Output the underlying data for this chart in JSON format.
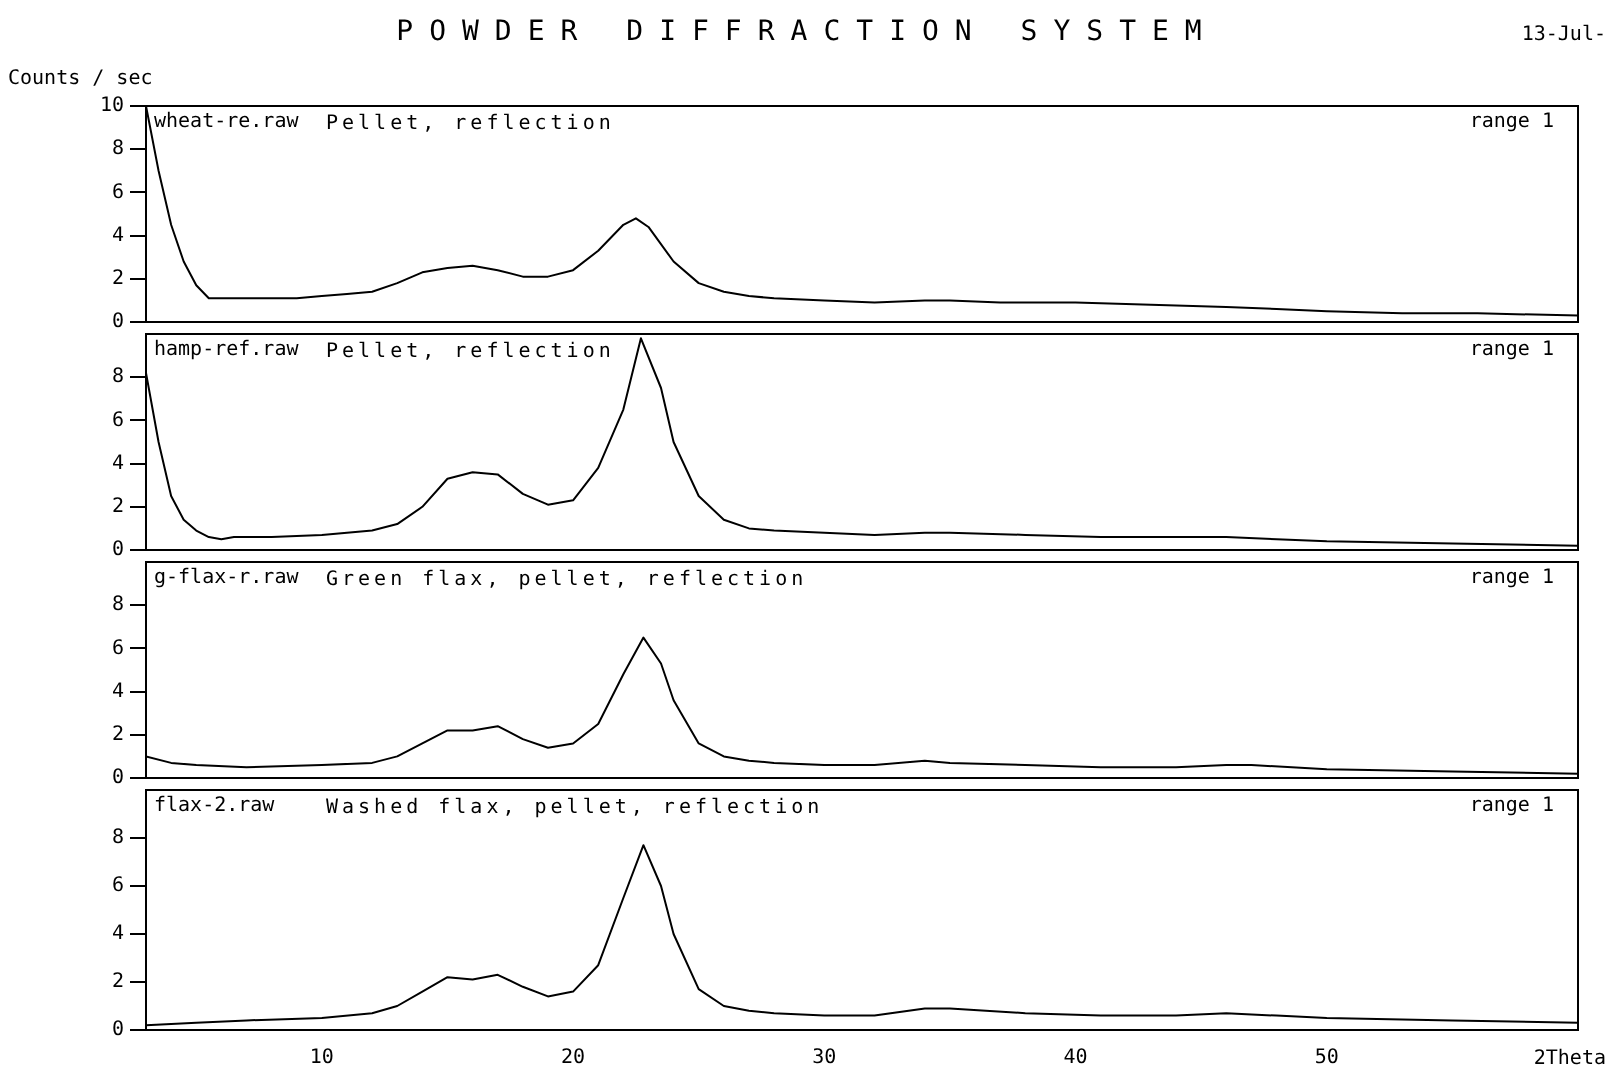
{
  "chart_data": [
    {
      "type": "line",
      "title": "POWDER DIFFRACTION SYSTEM",
      "ylabel": "Counts / sec",
      "annotations": [
        "wheat-re.raw",
        "Pellet, reflection",
        "range 1",
        "13-Jul-"
      ],
      "xlim": [
        3,
        60
      ],
      "xticks": [
        10,
        20,
        30,
        40,
        50
      ],
      "ylim": [
        0,
        10
      ],
      "yticks": [
        0,
        2,
        4,
        6,
        8,
        10
      ],
      "tick_labels": "y",
      "color": "#000000",
      "x": [
        3,
        3.5,
        4,
        4.5,
        5,
        5.5,
        6,
        7,
        8,
        9,
        10,
        11,
        12,
        13,
        14,
        15,
        16,
        17,
        18,
        19,
        20,
        21,
        22,
        22.5,
        23,
        24,
        25,
        26,
        27,
        28,
        30,
        32,
        34,
        35,
        37,
        40,
        43,
        46,
        48,
        50,
        53,
        56,
        60
      ],
      "values": [
        10,
        7,
        4.5,
        2.8,
        1.7,
        1.1,
        1.1,
        1.1,
        1.1,
        1.1,
        1.2,
        1.3,
        1.4,
        1.8,
        2.3,
        2.5,
        2.6,
        2.4,
        2.1,
        2.1,
        2.4,
        3.3,
        4.5,
        4.8,
        4.4,
        2.8,
        1.8,
        1.4,
        1.2,
        1.1,
        1.0,
        0.9,
        1.0,
        1.0,
        0.9,
        0.9,
        0.8,
        0.7,
        0.6,
        0.5,
        0.4,
        0.4,
        0.3
      ]
    },
    {
      "type": "line",
      "annotations": [
        "hamp-ref.raw",
        "Pellet, reflection",
        "range 1"
      ],
      "xlim": [
        3,
        60
      ],
      "xticks": [
        10,
        20,
        30,
        40,
        50
      ],
      "ylim": [
        0,
        10
      ],
      "yticks": [
        0,
        2,
        4,
        6,
        8
      ],
      "tick_labels": "y",
      "color": "#000000",
      "x": [
        3,
        3.5,
        4,
        4.5,
        5,
        5.5,
        6,
        6.5,
        8,
        10,
        12,
        13,
        14,
        15,
        16,
        17,
        18,
        19,
        20,
        21,
        22,
        22.7,
        23.5,
        24,
        25,
        26,
        27,
        28,
        30,
        32,
        34,
        35,
        38,
        41,
        44,
        46,
        48,
        50,
        55,
        60
      ],
      "values": [
        8.2,
        5,
        2.5,
        1.4,
        0.9,
        0.6,
        0.5,
        0.6,
        0.6,
        0.7,
        0.9,
        1.2,
        2.0,
        3.3,
        3.6,
        3.5,
        2.6,
        2.1,
        2.3,
        3.8,
        6.5,
        9.8,
        7.5,
        5,
        2.5,
        1.4,
        1.0,
        0.9,
        0.8,
        0.7,
        0.8,
        0.8,
        0.7,
        0.6,
        0.6,
        0.6,
        0.5,
        0.4,
        0.3,
        0.2
      ]
    },
    {
      "type": "line",
      "annotations": [
        "g-flax-r.raw",
        "Green flax, pellet, reflection",
        "range 1"
      ],
      "xlim": [
        3,
        60
      ],
      "xticks": [
        10,
        20,
        30,
        40,
        50
      ],
      "ylim": [
        0,
        10
      ],
      "yticks": [
        0,
        2,
        4,
        6,
        8
      ],
      "tick_labels": "y",
      "color": "#000000",
      "x": [
        3,
        4,
        5,
        7,
        10,
        12,
        13,
        14,
        15,
        16,
        17,
        18,
        19,
        20,
        21,
        22,
        22.8,
        23.5,
        24,
        25,
        26,
        27,
        28,
        30,
        32,
        34,
        35,
        38,
        41,
        44,
        46,
        47,
        50,
        55,
        60
      ],
      "values": [
        1.0,
        0.7,
        0.6,
        0.5,
        0.6,
        0.7,
        1.0,
        1.6,
        2.2,
        2.2,
        2.4,
        1.8,
        1.4,
        1.6,
        2.5,
        4.8,
        6.5,
        5.3,
        3.6,
        1.6,
        1.0,
        0.8,
        0.7,
        0.6,
        0.6,
        0.8,
        0.7,
        0.6,
        0.5,
        0.5,
        0.6,
        0.6,
        0.4,
        0.3,
        0.2
      ]
    },
    {
      "type": "line",
      "xlabel": "2Theta",
      "annotations": [
        "flax-2.raw",
        "Washed flax, pellet, reflection",
        "range 1"
      ],
      "xlim": [
        3,
        60
      ],
      "xticks": [
        10,
        20,
        30,
        40,
        50
      ],
      "ylim": [
        0,
        10
      ],
      "yticks": [
        0,
        2,
        4,
        6,
        8
      ],
      "color": "#000000",
      "x": [
        3,
        5,
        7,
        10,
        12,
        13,
        14,
        15,
        16,
        17,
        18,
        19,
        20,
        21,
        22,
        22.8,
        23.5,
        24,
        25,
        26,
        27,
        28,
        30,
        32,
        34,
        35,
        38,
        41,
        44,
        46,
        48,
        50,
        55,
        60
      ],
      "values": [
        0.2,
        0.3,
        0.4,
        0.5,
        0.7,
        1.0,
        1.6,
        2.2,
        2.1,
        2.3,
        1.8,
        1.4,
        1.6,
        2.7,
        5.5,
        7.7,
        6,
        4,
        1.7,
        1.0,
        0.8,
        0.7,
        0.6,
        0.6,
        0.9,
        0.9,
        0.7,
        0.6,
        0.6,
        0.7,
        0.6,
        0.5,
        0.4,
        0.3
      ]
    }
  ]
}
